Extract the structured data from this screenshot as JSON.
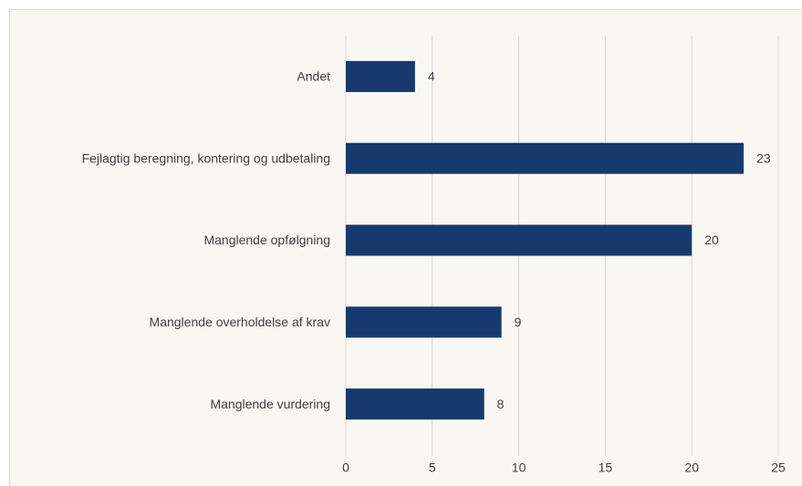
{
  "chart_data": {
    "type": "bar",
    "orientation": "horizontal",
    "categories": [
      "Andet",
      "Fejlagtig beregning, kontering og udbetaling",
      "Manglende opfølgning",
      "Manglende overholdelse af krav",
      "Manglende vurdering"
    ],
    "values": [
      4,
      23,
      20,
      9,
      8
    ],
    "color": "#163a6e",
    "xlim": [
      0,
      25
    ],
    "xticks": [
      0,
      5,
      10,
      15,
      20,
      25
    ],
    "grid": true
  }
}
